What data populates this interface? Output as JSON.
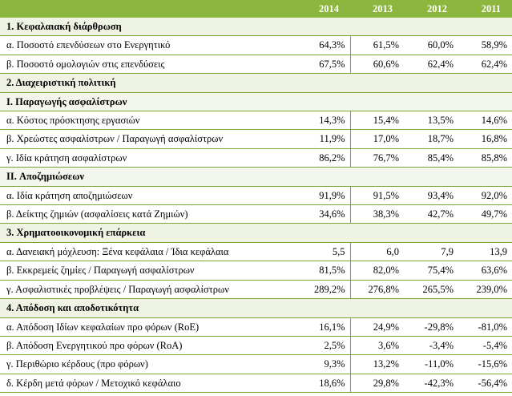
{
  "years": [
    "2014",
    "2013",
    "2012",
    "2011"
  ],
  "rows": [
    {
      "type": "section",
      "label": "1. Κεφαλαιακή διάρθρωση"
    },
    {
      "type": "item",
      "label": "α. Ποσοστό επενδύσεων στο Ενεργητικό",
      "values": [
        "64,3%",
        "61,5%",
        "60,0%",
        "58,9%"
      ]
    },
    {
      "type": "item",
      "label": "β. Ποσοστό ομολογιών στις επενδύσεις",
      "values": [
        "67,5%",
        "60,6%",
        "62,4%",
        "62,4%"
      ]
    },
    {
      "type": "section",
      "label": "2. Διαχειριστική πολιτική"
    },
    {
      "type": "subsection",
      "label": "I. Παραγωγής ασφαλίστρων"
    },
    {
      "type": "item",
      "label": "α. Κόστος πρόσκτησης εργασιών",
      "values": [
        "14,3%",
        "15,4%",
        "13,5%",
        "14,6%"
      ]
    },
    {
      "type": "item",
      "label": "β. Χρεώστες ασφαλίστρων / Παραγωγή ασφαλίστρων",
      "values": [
        "11,9%",
        "17,0%",
        "18,7%",
        "16,8%"
      ]
    },
    {
      "type": "item",
      "label": "γ. Ιδία κράτηση ασφαλίστρων",
      "values": [
        "86,2%",
        "76,7%",
        "85,4%",
        "85,8%"
      ]
    },
    {
      "type": "subsection",
      "label": "II. Αποζημιώσεων"
    },
    {
      "type": "item",
      "label": "α. Ιδία κράτηση αποζημιώσεων",
      "values": [
        "91,9%",
        "91,5%",
        "93,4%",
        "92,0%"
      ]
    },
    {
      "type": "item",
      "label": "β. Δείκτης ζημιών (ασφαλίσεις κατά Ζημιών)",
      "values": [
        "34,6%",
        "38,3%",
        "42,7%",
        "49,7%"
      ]
    },
    {
      "type": "section",
      "label": "3. Χρηματοοικονομική επάρκεια"
    },
    {
      "type": "item",
      "label": "α. Δανειακή μόχλευση: Ξένα κεφάλαια / Ίδια κεφάλαια",
      "values": [
        "5,5",
        "6,0",
        "7,9",
        "13,9"
      ]
    },
    {
      "type": "item",
      "label": "β. Εκκρεμείς ζημίες / Παραγωγή ασφαλίστρων",
      "values": [
        "81,5%",
        "82,0%",
        "75,4%",
        "63,6%"
      ]
    },
    {
      "type": "item",
      "label": "γ. Ασφαλιστικές προβλέψεις / Παραγωγή ασφαλίστρων",
      "values": [
        "289,2%",
        "276,8%",
        "265,5%",
        "239,0%"
      ]
    },
    {
      "type": "section",
      "label": "4. Απόδοση και αποδοτικότητα"
    },
    {
      "type": "item",
      "label": "α. Απόδοση Ιδίων κεφαλαίων προ φόρων (RoE)",
      "values": [
        "16,1%",
        "24,9%",
        "-29,8%",
        "-81,0%"
      ]
    },
    {
      "type": "item",
      "label": "β. Απόδοση Ενεργητικού προ φόρων (RoA)",
      "values": [
        "2,5%",
        "3,6%",
        "-3,4%",
        "-5,4%"
      ]
    },
    {
      "type": "item",
      "label": "γ. Περιθώριο κέρδους (προ φόρων)",
      "values": [
        "9,3%",
        "13,2%",
        "-11,0%",
        "-15,6%"
      ]
    },
    {
      "type": "item",
      "label": "δ. Κέρδη μετά φόρων / Μετοχικό κεφάλαιο",
      "values": [
        "18,6%",
        "29,8%",
        "-42,3%",
        "-56,4%"
      ]
    }
  ]
}
